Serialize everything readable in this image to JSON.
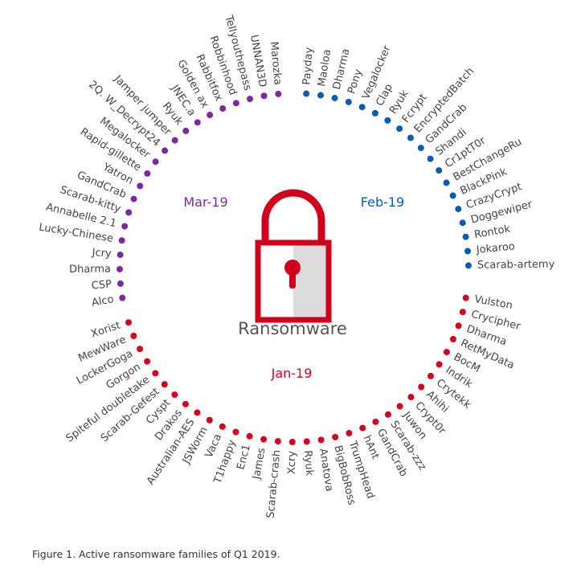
{
  "center_label": "Ransomware",
  "caption": "Figure 1. Active ransomware families of Q1 2019.",
  "months": [
    {
      "label": "Feb-19",
      "color": "#0a5cb3",
      "families": [
        "Payday",
        "Maoloa",
        "Dharma",
        "Pony",
        "Vegalocker",
        "Clap",
        "Ryuk",
        "Fcrypt",
        "EncryptedBatch",
        "GandCrab",
        "Shandi",
        "Cr1ptT0r",
        "BestChangeRu",
        "BlackPink",
        "CrazyCrypt",
        "Doggewiper",
        "Rontok",
        "Jokaroo",
        "Scarab-artemy"
      ]
    },
    {
      "label": "Jan-19",
      "color": "#d6001c",
      "families": [
        "Vulston",
        "Crycipher",
        "Dharma",
        "RetMyData",
        "BocM",
        "Indrik",
        "Crytekk",
        "Ahihi",
        "Crypt0r",
        "Juwon",
        "Scarab-zzz",
        "GandCrab",
        "hAnt",
        "TrumpHead",
        "BigBobRoss",
        "Anatova",
        "Ryuk",
        "Xcry",
        "Scarab-crash",
        "James",
        "Enc1",
        "T1happy",
        "Vaca",
        "JSWorm",
        "Australian-AES",
        "Drakos",
        "Cyspt",
        "Scarab-Gefest",
        "Spiteful doubletake",
        "Gorgon",
        "LockerGoga",
        "MewWare",
        "Xorist"
      ]
    },
    {
      "label": "Mar-19",
      "color": "#7b2a9e",
      "families": [
        "Alco",
        "CSP",
        "Dharma",
        "Jcry",
        "Lucky-Chinese",
        "Annabelle 2.1",
        "Scarab-kitty",
        "GandCrab",
        "Yatron",
        "Rapid-gillette",
        "Megalocker",
        "2Q. W_Decrypt24",
        "Jamper jumper",
        "Ryuk",
        "JNEC.a",
        "Golden ax",
        "Rabbitfox",
        "Robbinhood",
        "Tellyouthepass",
        "UNNAN3D",
        "Marozka"
      ]
    }
  ],
  "lock_color": "#d0021b",
  "icon": "padlock-icon"
}
